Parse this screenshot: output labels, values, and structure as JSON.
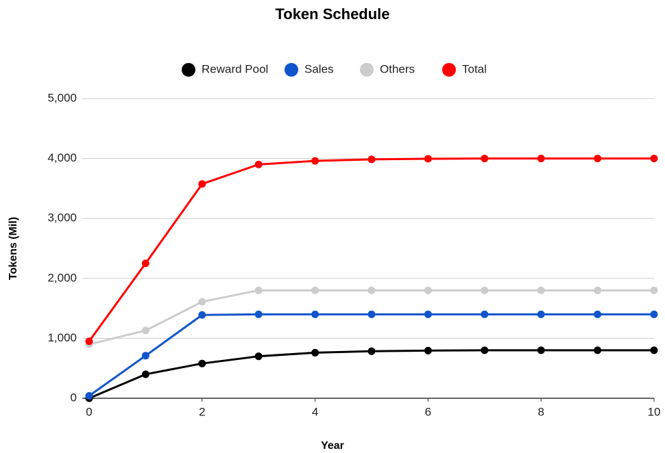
{
  "chart_data": {
    "type": "line",
    "title": "Token Schedule",
    "x_label": "Year",
    "y_label": "Tokens (Mil)",
    "x": [
      0,
      1,
      2,
      3,
      4,
      5,
      6,
      7,
      8,
      9,
      10
    ],
    "series": [
      {
        "name": "Reward Pool",
        "color": "#000000",
        "values": [
          0,
          400,
          580,
          700,
          760,
          785,
          795,
          800,
          800,
          800,
          800
        ]
      },
      {
        "name": "Sales",
        "color": "#1155cc",
        "values": [
          40,
          710,
          1390,
          1400,
          1400,
          1400,
          1400,
          1400,
          1400,
          1400,
          1400
        ]
      },
      {
        "name": "Others",
        "color": "#cccccc",
        "values": [
          900,
          1130,
          1610,
          1800,
          1800,
          1800,
          1800,
          1800,
          1800,
          1800,
          1800
        ]
      },
      {
        "name": "Total",
        "color": "#ff0000",
        "values": [
          950,
          2250,
          3575,
          3900,
          3960,
          3985,
          3995,
          4000,
          4000,
          4000,
          4000
        ]
      }
    ],
    "xlim": [
      0,
      10
    ],
    "xticks": [
      0,
      2,
      4,
      6,
      8,
      10
    ],
    "ylim": [
      0,
      5000
    ],
    "yticks": [
      0,
      {
        "value": 1000,
        "label": "1,000"
      },
      {
        "value": 2000,
        "label": "2,000"
      },
      {
        "value": 3000,
        "label": "3,000"
      },
      {
        "value": 4000,
        "label": "4,000"
      },
      {
        "value": 5000,
        "label": "5,000"
      }
    ],
    "grid": true,
    "legend": "top"
  }
}
